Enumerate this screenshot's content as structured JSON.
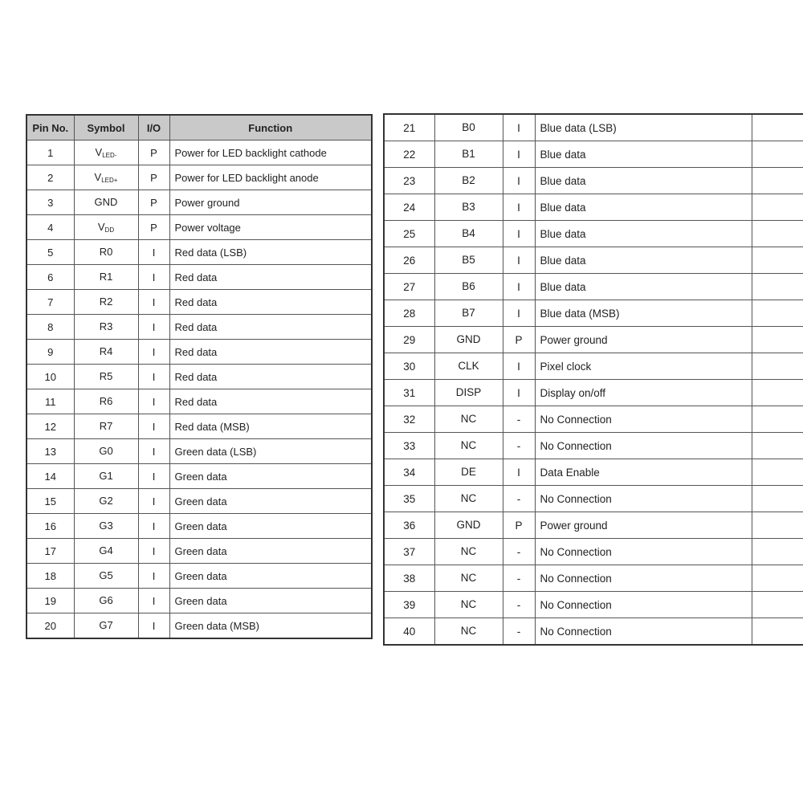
{
  "left_table": {
    "headers": [
      "Pin No.",
      "Symbol",
      "I/O",
      "Function"
    ],
    "rows": [
      {
        "pin": "1",
        "symbol": "V",
        "sub": "LED-",
        "io": "P",
        "function": "Power for LED backlight cathode"
      },
      {
        "pin": "2",
        "symbol": "V",
        "sub": "LED+",
        "io": "P",
        "function": "Power for LED backlight anode"
      },
      {
        "pin": "3",
        "symbol": "GND",
        "sub": "",
        "io": "P",
        "function": "Power ground"
      },
      {
        "pin": "4",
        "symbol": "V",
        "sub": "DD",
        "io": "P",
        "function": "Power voltage"
      },
      {
        "pin": "5",
        "symbol": "R0",
        "sub": "",
        "io": "I",
        "function": "Red data (LSB)"
      },
      {
        "pin": "6",
        "symbol": "R1",
        "sub": "",
        "io": "I",
        "function": "Red data"
      },
      {
        "pin": "7",
        "symbol": "R2",
        "sub": "",
        "io": "I",
        "function": "Red data"
      },
      {
        "pin": "8",
        "symbol": "R3",
        "sub": "",
        "io": "I",
        "function": "Red data"
      },
      {
        "pin": "9",
        "symbol": "R4",
        "sub": "",
        "io": "I",
        "function": "Red data"
      },
      {
        "pin": "10",
        "symbol": "R5",
        "sub": "",
        "io": "I",
        "function": "Red data"
      },
      {
        "pin": "11",
        "symbol": "R6",
        "sub": "",
        "io": "I",
        "function": "Red data"
      },
      {
        "pin": "12",
        "symbol": "R7",
        "sub": "",
        "io": "I",
        "function": "Red data (MSB)"
      },
      {
        "pin": "13",
        "symbol": "G0",
        "sub": "",
        "io": "I",
        "function": "Green data (LSB)"
      },
      {
        "pin": "14",
        "symbol": "G1",
        "sub": "",
        "io": "I",
        "function": "Green data"
      },
      {
        "pin": "15",
        "symbol": "G2",
        "sub": "",
        "io": "I",
        "function": "Green data"
      },
      {
        "pin": "16",
        "symbol": "G3",
        "sub": "",
        "io": "I",
        "function": "Green data"
      },
      {
        "pin": "17",
        "symbol": "G4",
        "sub": "",
        "io": "I",
        "function": "Green data"
      },
      {
        "pin": "18",
        "symbol": "G5",
        "sub": "",
        "io": "I",
        "function": "Green data"
      },
      {
        "pin": "19",
        "symbol": "G6",
        "sub": "",
        "io": "I",
        "function": "Green data"
      },
      {
        "pin": "20",
        "symbol": "G7",
        "sub": "",
        "io": "I",
        "function": "Green data (MSB)"
      }
    ]
  },
  "right_table": {
    "rows": [
      {
        "pin": "21",
        "symbol": "B0",
        "sub": "",
        "io": "I",
        "function": "Blue data (LSB)"
      },
      {
        "pin": "22",
        "symbol": "B1",
        "sub": "",
        "io": "I",
        "function": "Blue data"
      },
      {
        "pin": "23",
        "symbol": "B2",
        "sub": "",
        "io": "I",
        "function": "Blue data"
      },
      {
        "pin": "24",
        "symbol": "B3",
        "sub": "",
        "io": "I",
        "function": "Blue data"
      },
      {
        "pin": "25",
        "symbol": "B4",
        "sub": "",
        "io": "I",
        "function": "Blue data"
      },
      {
        "pin": "26",
        "symbol": "B5",
        "sub": "",
        "io": "I",
        "function": "Blue data"
      },
      {
        "pin": "27",
        "symbol": "B6",
        "sub": "",
        "io": "I",
        "function": "Blue data"
      },
      {
        "pin": "28",
        "symbol": "B7",
        "sub": "",
        "io": "I",
        "function": "Blue data (MSB)"
      },
      {
        "pin": "29",
        "symbol": "GND",
        "sub": "",
        "io": "P",
        "function": "Power ground"
      },
      {
        "pin": "30",
        "symbol": "CLK",
        "sub": "",
        "io": "I",
        "function": "Pixel clock"
      },
      {
        "pin": "31",
        "symbol": "DISP",
        "sub": "",
        "io": "I",
        "function": "Display on/off"
      },
      {
        "pin": "32",
        "symbol": "NC",
        "sub": "",
        "io": "-",
        "function": "No Connection"
      },
      {
        "pin": "33",
        "symbol": "NC",
        "sub": "",
        "io": "-",
        "function": "No Connection"
      },
      {
        "pin": "34",
        "symbol": "DE",
        "sub": "",
        "io": "I",
        "function": "Data Enable"
      },
      {
        "pin": "35",
        "symbol": "NC",
        "sub": "",
        "io": "-",
        "function": "No Connection"
      },
      {
        "pin": "36",
        "symbol": "GND",
        "sub": "",
        "io": "P",
        "function": "Power ground"
      },
      {
        "pin": "37",
        "symbol": "NC",
        "sub": "",
        "io": "-",
        "function": "No Connection"
      },
      {
        "pin": "38",
        "symbol": "NC",
        "sub": "",
        "io": "-",
        "function": "No Connection"
      },
      {
        "pin": "39",
        "symbol": "NC",
        "sub": "",
        "io": "-",
        "function": "No Connection"
      },
      {
        "pin": "40",
        "symbol": "NC",
        "sub": "",
        "io": "-",
        "function": "No Connection"
      }
    ]
  }
}
